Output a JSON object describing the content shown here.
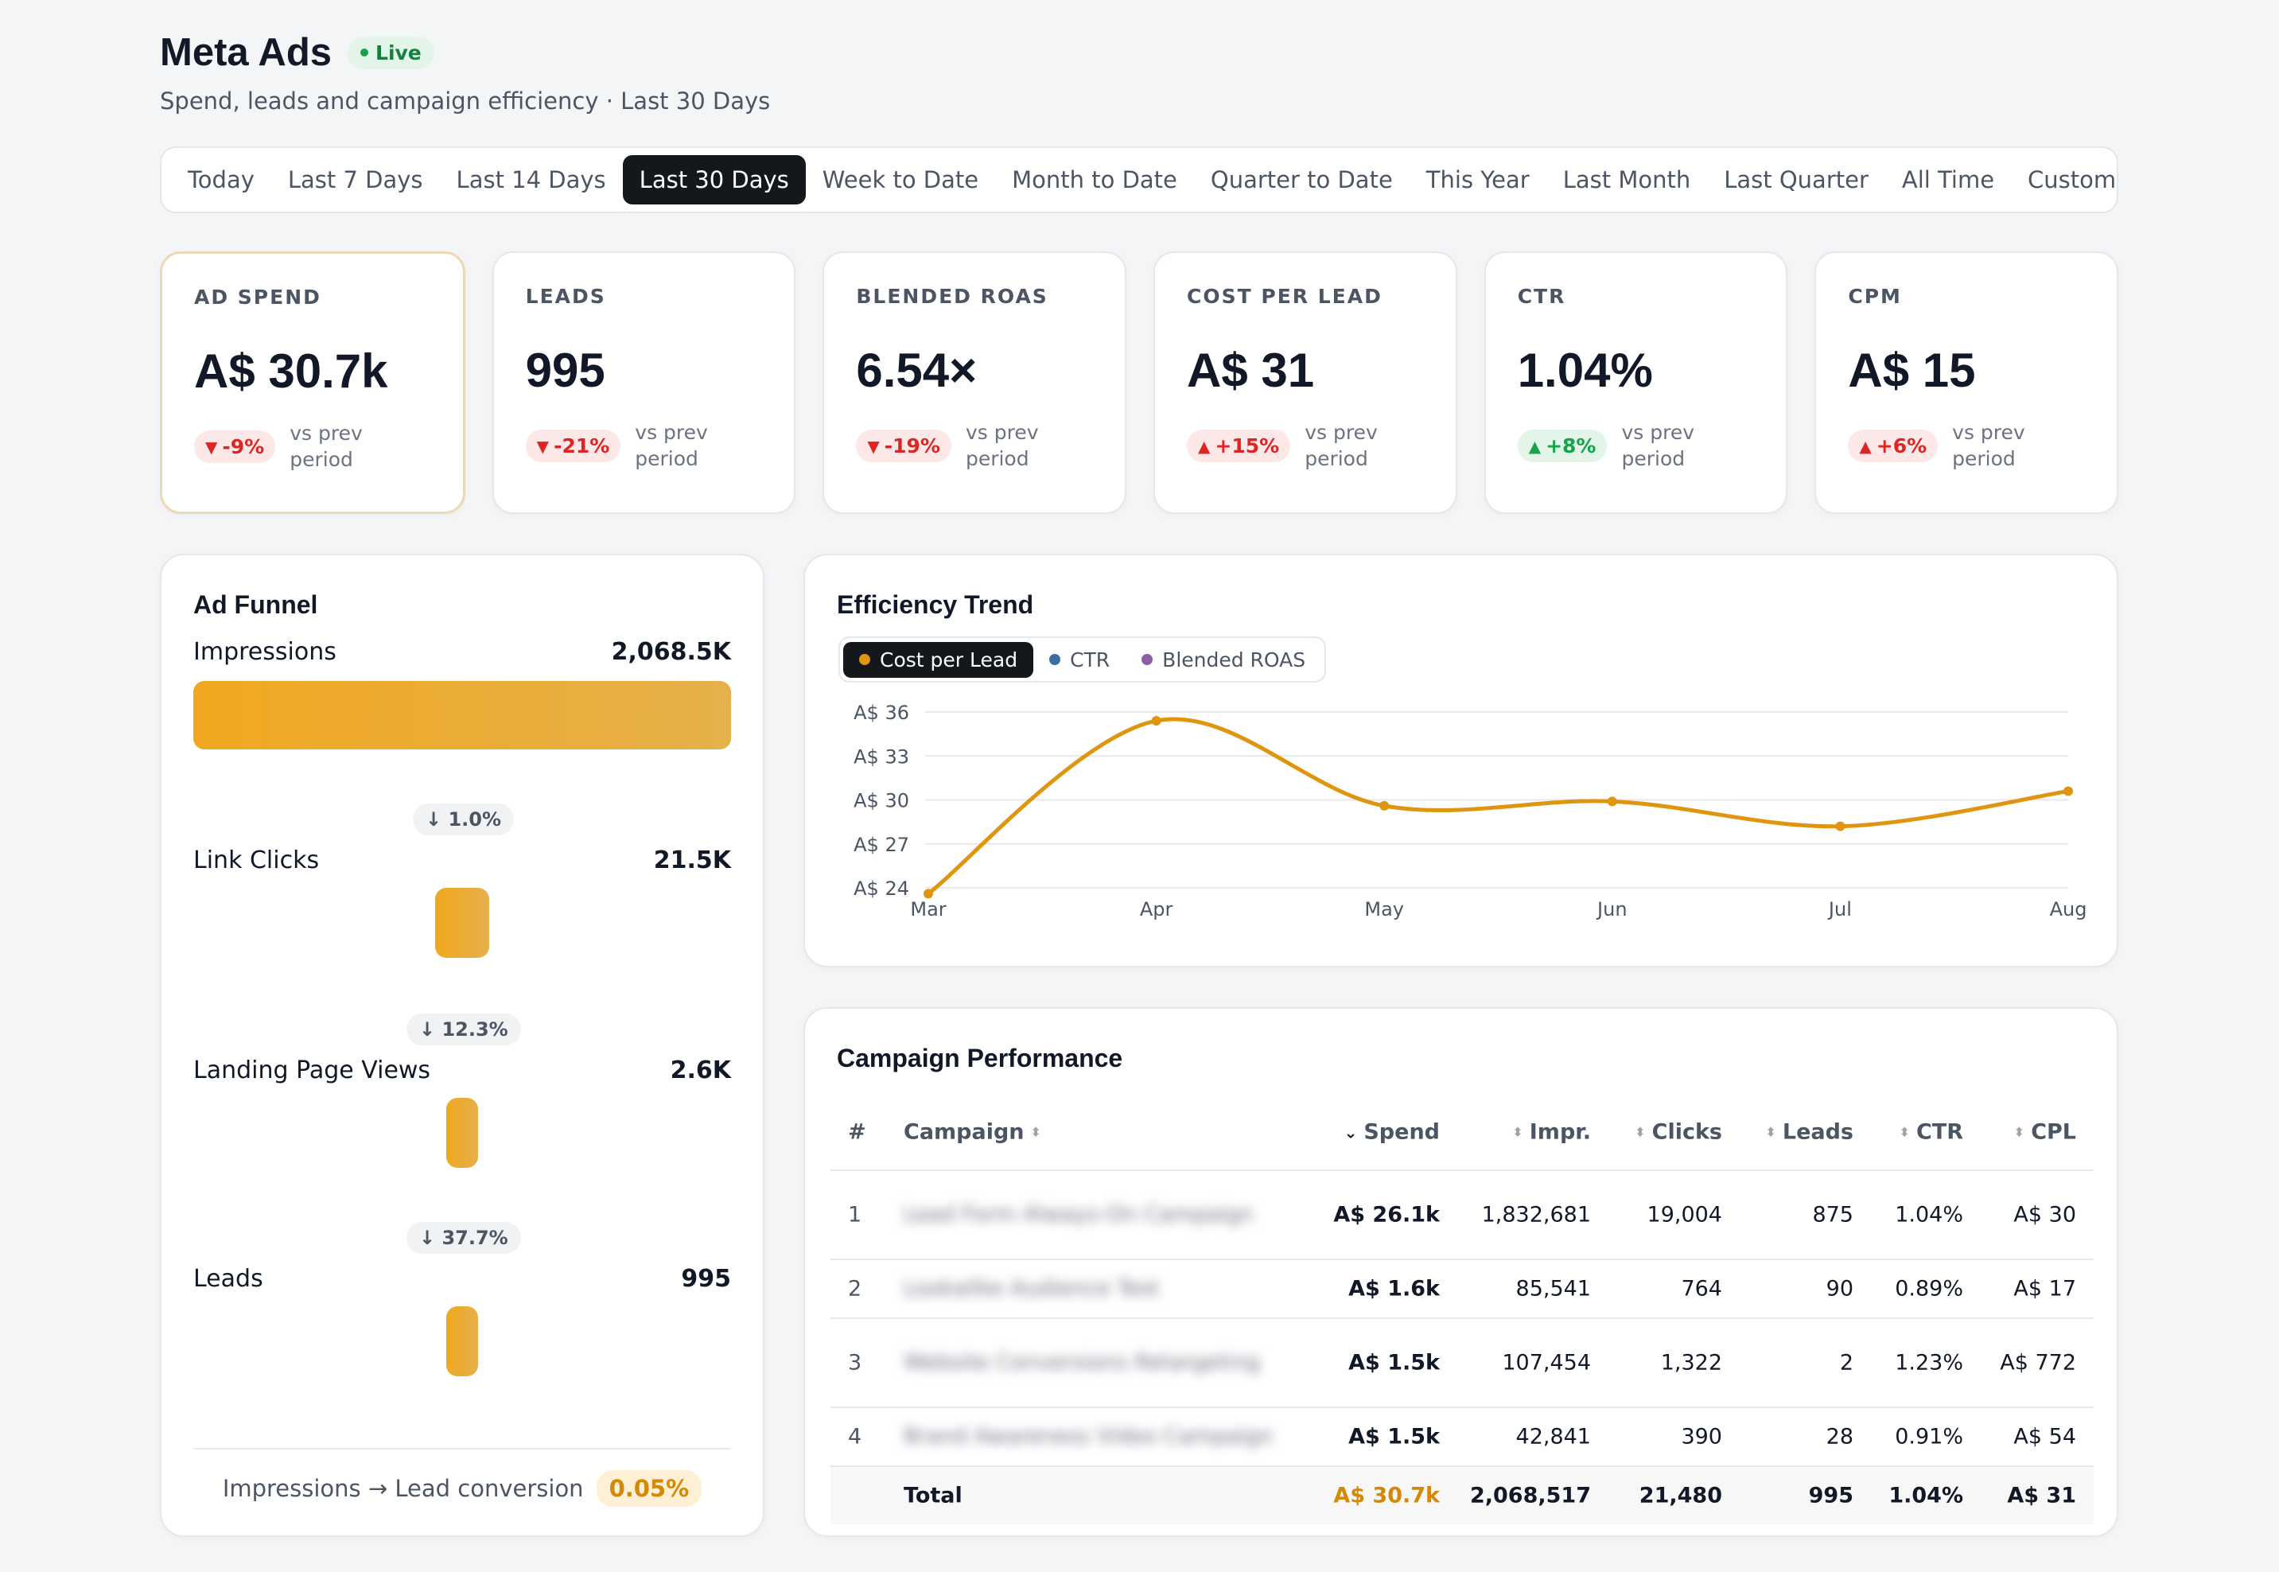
{
  "header": {
    "title": "Meta Ads",
    "live": "Live",
    "subtitle": "Spend, leads and campaign efficiency · Last 30 Days"
  },
  "ranges": [
    "Today",
    "Last 7 Days",
    "Last 14 Days",
    "Last 30 Days",
    "Week to Date",
    "Month to Date",
    "Quarter to Date",
    "This Year",
    "Last Month",
    "Last Quarter",
    "All Time",
    "Custom"
  ],
  "active_range": "Last 30 Days",
  "kpis": [
    {
      "label": "AD SPEND",
      "value": "A$ 30.7k",
      "delta": "-9%",
      "dir": "down",
      "vs": "vs prev period"
    },
    {
      "label": "LEADS",
      "value": "995",
      "delta": "-21%",
      "dir": "down",
      "vs": "vs prev period"
    },
    {
      "label": "BLENDED ROAS",
      "value": "6.54×",
      "delta": "-19%",
      "dir": "down",
      "vs": "vs prev period"
    },
    {
      "label": "COST PER LEAD",
      "value": "A$ 31",
      "delta": "+15%",
      "dir": "up",
      "vs": "vs prev period"
    },
    {
      "label": "CTR",
      "value": "1.04%",
      "delta": "+8%",
      "dir": "up",
      "vs": "vs prev period"
    },
    {
      "label": "CPM",
      "value": "A$ 15",
      "delta": "+6%",
      "dir": "up",
      "vs": "vs prev period"
    }
  ],
  "funnel": {
    "title": "Ad Funnel",
    "stages": [
      {
        "label": "Impressions",
        "value": "2,068.5K",
        "count": 2068517
      },
      {
        "label": "Link Clicks",
        "value": "21.5K",
        "count": 21480
      },
      {
        "label": "Landing Page Views",
        "value": "2.6K",
        "count": 2640
      },
      {
        "label": "Leads",
        "value": "995",
        "count": 995
      }
    ],
    "drops": [
      "↓ 1.0%",
      "↓ 12.3%",
      "↓ 37.7%"
    ],
    "conversion_label": "Impressions → Lead conversion",
    "conversion_value": "0.05%"
  },
  "trend": {
    "title": "Efficiency Trend",
    "toggles": [
      {
        "label": "Cost per Lead",
        "color": "#e0950f",
        "active": true
      },
      {
        "label": "CTR",
        "color": "#3b6ea5",
        "active": false
      },
      {
        "label": "Blended ROAS",
        "color": "#8b5fa8",
        "active": false
      }
    ]
  },
  "chart_data": {
    "type": "line",
    "x": [
      "Mar",
      "Apr",
      "May",
      "Jun",
      "Jul",
      "Aug"
    ],
    "series": [
      {
        "name": "Cost per Lead",
        "values": [
          23.6,
          35.4,
          29.6,
          29.9,
          28.2,
          30.6
        ],
        "color": "#e0950f"
      }
    ],
    "yticks": [
      "A$ 36",
      "A$ 33",
      "A$ 30",
      "A$ 27",
      "A$ 24"
    ],
    "ytick_values": [
      36,
      33,
      30,
      27,
      24
    ],
    "ylim": [
      24,
      36
    ],
    "grid": true
  },
  "campaigns": {
    "title": "Campaign Performance",
    "columns": {
      "idx": "#",
      "name": "Campaign",
      "spend": "Spend",
      "impr": "Impr.",
      "clicks": "Clicks",
      "leads": "Leads",
      "ctr": "CTR",
      "cpl": "CPL"
    },
    "rows": [
      {
        "idx": "1",
        "name": "Lead Form Always-On Campaign",
        "spend": "A$ 26.1k",
        "impr": "1,832,681",
        "clicks": "19,004",
        "leads": "875",
        "ctr": "1.04%",
        "cpl": "A$ 30"
      },
      {
        "idx": "2",
        "name": "Lookalike Audience Test",
        "spend": "A$ 1.6k",
        "impr": "85,541",
        "clicks": "764",
        "leads": "90",
        "ctr": "0.89%",
        "cpl": "A$ 17"
      },
      {
        "idx": "3",
        "name": "Website Conversions Retargeting",
        "spend": "A$ 1.5k",
        "impr": "107,454",
        "clicks": "1,322",
        "leads": "2",
        "ctr": "1.23%",
        "cpl": "A$ 772"
      },
      {
        "idx": "4",
        "name": "Brand Awareness Video Campaign",
        "spend": "A$ 1.5k",
        "impr": "42,841",
        "clicks": "390",
        "leads": "28",
        "ctr": "0.91%",
        "cpl": "A$ 54"
      }
    ],
    "total": {
      "label": "Total",
      "spend": "A$ 30.7k",
      "impr": "2,068,517",
      "clicks": "21,480",
      "leads": "995",
      "ctr": "1.04%",
      "cpl": "A$ 31"
    }
  },
  "colors": {
    "accent": "#e0950f",
    "good": "#16a34a",
    "bad": "#dc2626",
    "dark": "#14171c"
  }
}
